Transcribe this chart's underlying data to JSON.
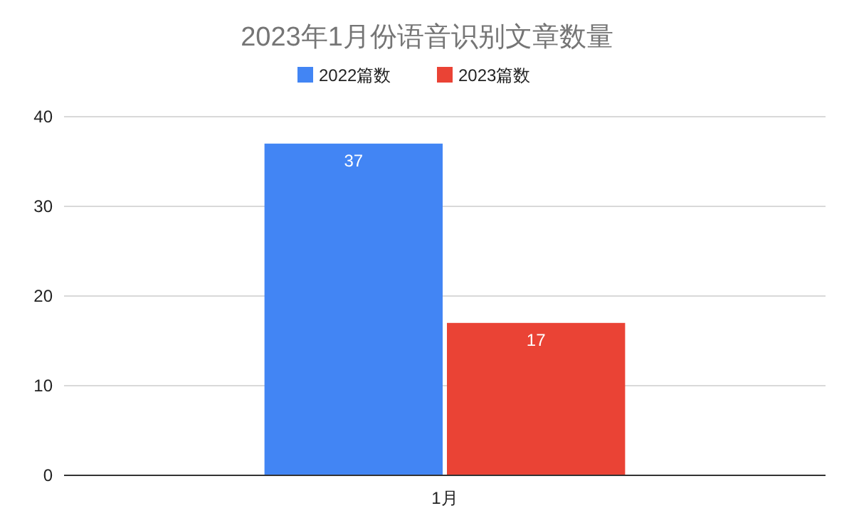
{
  "chart_data": {
    "type": "bar",
    "title": "2023年1月份语音识别文章数量",
    "categories": [
      "1月"
    ],
    "series": [
      {
        "name": "2022篇数",
        "color": "#4285f4",
        "values": [
          37
        ]
      },
      {
        "name": "2023篇数",
        "color": "#ea4335",
        "values": [
          17
        ]
      }
    ],
    "ylim": [
      0,
      40
    ],
    "yticks": [
      0,
      10,
      20,
      30,
      40
    ],
    "grid": "y",
    "legend": "top",
    "data_labels": true
  }
}
